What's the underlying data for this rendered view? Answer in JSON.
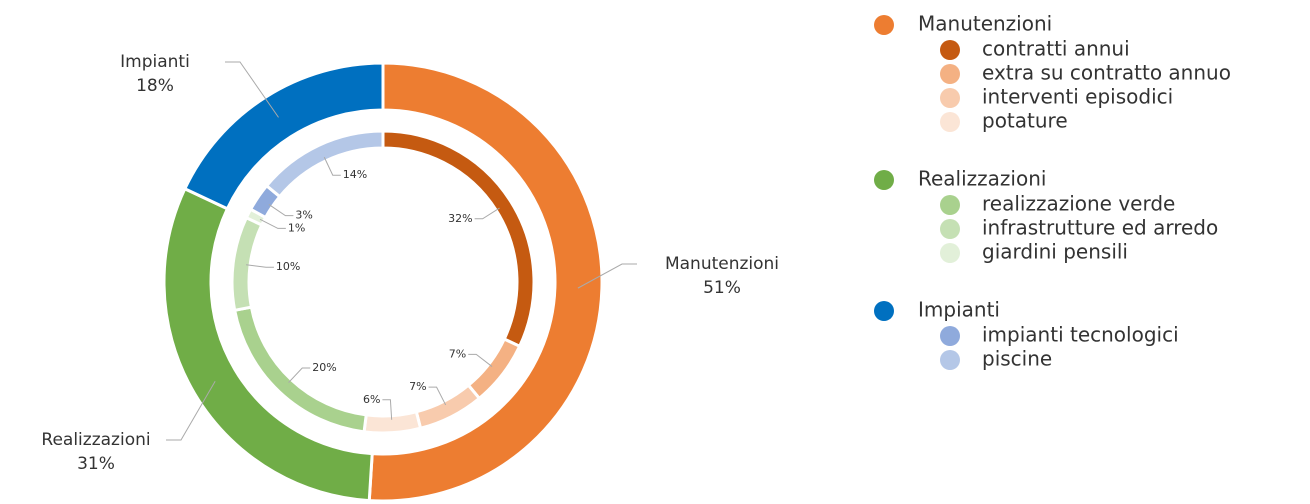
{
  "chart_data": {
    "type": "donut",
    "groups": [
      {
        "name": "Manutenzioni",
        "value": 51,
        "value_label": "51%",
        "color": "#ED7D31",
        "items": [
          {
            "name": "contratti annui",
            "value": 32,
            "value_label": "32%",
            "color": "#C55A11"
          },
          {
            "name": "extra su contratto annuo",
            "value": 7,
            "value_label": "7%",
            "color": "#F4B183"
          },
          {
            "name": "interventi episodici",
            "value": 7,
            "value_label": "7%",
            "color": "#F8CBAD"
          },
          {
            "name": "potature",
            "value": 6,
            "value_label": "6%",
            "color": "#FBE5D6"
          }
        ]
      },
      {
        "name": "Realizzazioni",
        "value": 31,
        "value_label": "31%",
        "color": "#70AD47",
        "items": [
          {
            "name": "realizzazione verde",
            "value": 20,
            "value_label": "20%",
            "color": "#A9D18E"
          },
          {
            "name": "infrastrutture ed arredo",
            "value": 10,
            "value_label": "10%",
            "color": "#C5E0B4"
          },
          {
            "name": "giardini pensili",
            "value": 1,
            "value_label": "1%",
            "color": "#E2F0D9"
          }
        ]
      },
      {
        "name": "Impianti",
        "value": 18,
        "value_label": "18%",
        "color": "#0070C0",
        "items": [
          {
            "name": "impianti tecnologici",
            "value": 3,
            "value_label": "3%",
            "color": "#8FAADC"
          },
          {
            "name": "piscine",
            "value": 14,
            "value_label": "14%",
            "color": "#B4C7E7"
          }
        ]
      }
    ]
  }
}
